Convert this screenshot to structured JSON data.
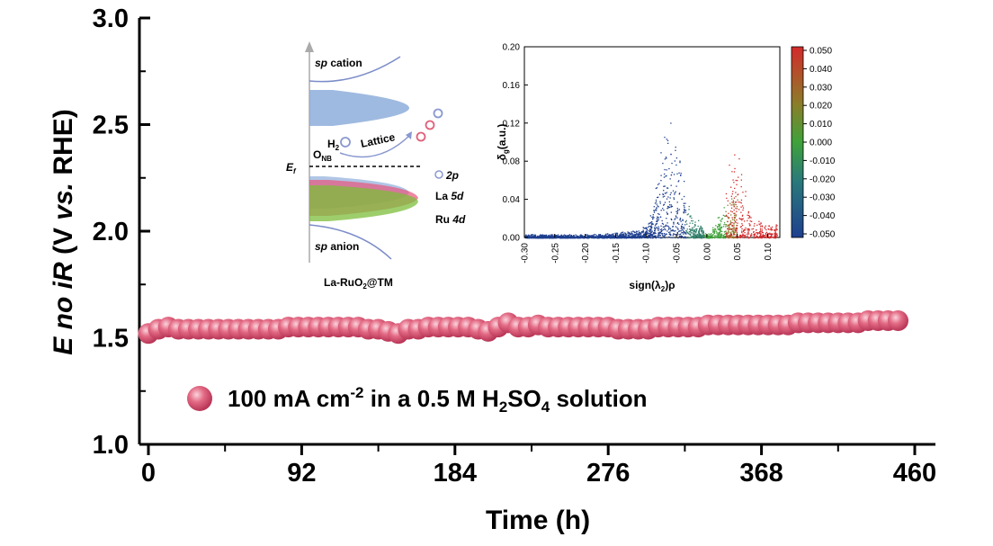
{
  "chart_data": {
    "type": "scatter",
    "xlabel": "Time (h)",
    "ylabel": {
      "pre": "E no iR",
      "paren_open": " (V ",
      "vs": "vs.",
      "post": " RHE)"
    },
    "xlim": [
      0,
      460
    ],
    "ylim": [
      1.0,
      3.0
    ],
    "x_ticks": [
      "0",
      "92",
      "184",
      "276",
      "368",
      "460"
    ],
    "y_ticks": [
      "1.0",
      "1.5",
      "2.0",
      "2.5",
      "3.0"
    ],
    "grid": false,
    "legend_position": "bottom-left",
    "series": [
      {
        "name": "100 mA cm-2 in a 0.5 M H2SO4 solution",
        "color": "#e0607a",
        "x": [
          0,
          6,
          12,
          18,
          24,
          30,
          36,
          42,
          48,
          54,
          60,
          66,
          72,
          78,
          84,
          90,
          96,
          102,
          108,
          114,
          120,
          126,
          132,
          138,
          144,
          150,
          156,
          162,
          168,
          174,
          180,
          186,
          192,
          198,
          204,
          210,
          216,
          222,
          228,
          234,
          240,
          246,
          252,
          258,
          264,
          270,
          276,
          282,
          288,
          294,
          300,
          306,
          312,
          318,
          324,
          330,
          336,
          342,
          348,
          354,
          360,
          366,
          372,
          378,
          384,
          390,
          396,
          402,
          408,
          414,
          420,
          426,
          432,
          438,
          444,
          450
        ],
        "y": [
          1.52,
          1.54,
          1.55,
          1.54,
          1.54,
          1.54,
          1.54,
          1.54,
          1.54,
          1.54,
          1.54,
          1.54,
          1.54,
          1.54,
          1.55,
          1.55,
          1.55,
          1.55,
          1.55,
          1.55,
          1.55,
          1.55,
          1.54,
          1.54,
          1.53,
          1.52,
          1.54,
          1.54,
          1.55,
          1.55,
          1.55,
          1.55,
          1.55,
          1.54,
          1.53,
          1.55,
          1.57,
          1.55,
          1.55,
          1.56,
          1.55,
          1.55,
          1.55,
          1.55,
          1.55,
          1.55,
          1.55,
          1.54,
          1.54,
          1.54,
          1.54,
          1.55,
          1.55,
          1.55,
          1.55,
          1.55,
          1.56,
          1.56,
          1.56,
          1.56,
          1.56,
          1.56,
          1.56,
          1.56,
          1.56,
          1.57,
          1.57,
          1.57,
          1.57,
          1.57,
          1.57,
          1.57,
          1.58,
          1.58,
          1.58,
          1.58
        ]
      }
    ],
    "legend": {
      "text_a": "100 mA cm",
      "sup": "-2",
      "text_b": " in a 0.5 M H",
      "sub1": "2",
      "text_c": "SO",
      "sub2": "4",
      "text_d": " solution"
    }
  },
  "inset_left": {
    "sp_cation": {
      "a": "sp",
      "b": " cation"
    },
    "sp_anion": {
      "a": "sp",
      "b": " anion"
    },
    "ef": {
      "a": "E",
      "b": "f"
    },
    "onb": {
      "a": "O",
      "b": "NB"
    },
    "h2o": {
      "a": "H",
      "b": "2",
      "c": "O"
    },
    "lattice": "Lattice",
    "o_label": "O",
    "o2p": {
      "a": "O ",
      "b": "2p"
    },
    "la5d": {
      "a": "La ",
      "b": "5d"
    },
    "ru4d": {
      "a": "Ru ",
      "b": "4d"
    },
    "catalyst": {
      "a": "La-RuO",
      "b": "2",
      "c": "@TM"
    },
    "colors": {
      "band_blue": "#8eaedb",
      "band_purple": "#9b7bc4",
      "band_pink": "#e8557a",
      "band_green": "#7cbd3a",
      "lattice_text": "#e03a60",
      "o_marker": "#e0607a",
      "o2p_text": "#8a98d0",
      "la_text": "#e03a60",
      "ru_text": "#6aa82c"
    }
  },
  "inset_right": {
    "xlabel": {
      "a": "sign(λ",
      "b": "2",
      "c": ")ρ"
    },
    "ylabel": {
      "a": "δ",
      "b": "g",
      "c": "(a.u.)"
    },
    "xlim": [
      -0.3,
      0.12
    ],
    "ylim": [
      0,
      0.2
    ],
    "x_ticks": [
      "-0.30",
      "-0.25",
      "-0.20",
      "-0.15",
      "-0.10",
      "-0.05",
      "0.00",
      "0.05",
      "0.10"
    ],
    "y_ticks": [
      "0.00",
      "0.04",
      "0.08",
      "0.12",
      "0.16",
      "0.20"
    ],
    "colorbar_ticks": [
      "0.050",
      "0.040",
      "0.030",
      "0.020",
      "0.010",
      "0.000",
      "-0.010",
      "-0.020",
      "-0.030",
      "-0.040",
      "-0.050"
    ],
    "colors": {
      "low": "#1e3f8f",
      "mid": "#3fa23a",
      "high": "#d42a2a"
    }
  }
}
